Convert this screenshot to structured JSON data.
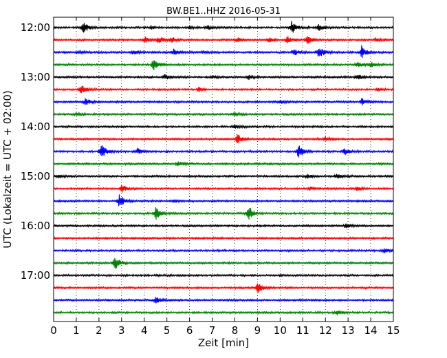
{
  "chart_data": {
    "type": "line",
    "title": "BW.BE1..HHZ 2016-05-31",
    "xlabel": "Zeit  [min]",
    "ylabel": "UTC (Lokalzeit = UTC + 02:00)",
    "xlim": [
      0,
      15
    ],
    "x_ticks": [
      "0",
      "1",
      "2",
      "3",
      "4",
      "5",
      "6",
      "7",
      "8",
      "9",
      "10",
      "11",
      "12",
      "13",
      "14",
      "15"
    ],
    "y_tick_labels": [
      "12:00",
      "13:00",
      "14:00",
      "15:00",
      "16:00",
      "17:00"
    ],
    "grid": "vertical dotted",
    "colors": [
      "#000000",
      "#ff0000",
      "#0000ff",
      "#008000"
    ],
    "traces": [
      {
        "start": "12:00",
        "color": "#000000",
        "bursts": [
          [
            1.3,
            0.75
          ],
          [
            4.3,
            0.2
          ],
          [
            6.0,
            0.2
          ],
          [
            6.8,
            0.25
          ],
          [
            10.5,
            0.85
          ],
          [
            11.7,
            0.45
          ]
        ]
      },
      {
        "start": "12:15",
        "color": "#ff0000",
        "bursts": [
          [
            4.0,
            0.45
          ],
          [
            4.6,
            0.5
          ],
          [
            5.2,
            0.35
          ],
          [
            8.1,
            0.3
          ],
          [
            9.5,
            0.3
          ],
          [
            10.3,
            0.5
          ],
          [
            11.2,
            0.55
          ],
          [
            14.2,
            0.2
          ]
        ]
      },
      {
        "start": "12:30",
        "color": "#0000ff",
        "bursts": [
          [
            1.1,
            0.2
          ],
          [
            3.5,
            0.3
          ],
          [
            5.3,
            0.6
          ],
          [
            6.6,
            0.2
          ],
          [
            10.6,
            0.45
          ],
          [
            11.7,
            0.9
          ],
          [
            13.6,
            0.85
          ]
        ]
      },
      {
        "start": "12:45",
        "color": "#008000",
        "bursts": [
          [
            4.4,
            0.8
          ],
          [
            13.4,
            0.4
          ],
          [
            14.0,
            0.3
          ]
        ]
      },
      {
        "start": "13:00",
        "color": "#000000",
        "bursts": [
          [
            4.9,
            0.35
          ],
          [
            7.0,
            0.2
          ],
          [
            8.6,
            0.35
          ],
          [
            13.4,
            0.4
          ]
        ]
      },
      {
        "start": "13:15",
        "color": "#ff0000",
        "bursts": [
          [
            1.2,
            0.6
          ],
          [
            6.4,
            0.3
          ],
          [
            14.3,
            0.25
          ]
        ]
      },
      {
        "start": "13:30",
        "color": "#0000ff",
        "bursts": [
          [
            1.4,
            0.5
          ],
          [
            10.0,
            0.2
          ],
          [
            13.6,
            0.5
          ]
        ]
      },
      {
        "start": "13:45",
        "color": "#008000",
        "bursts": [
          [
            1.0,
            0.2
          ],
          [
            8.0,
            0.3
          ]
        ]
      },
      {
        "start": "14:00",
        "color": "#000000",
        "bursts": [
          [
            8.0,
            0.25
          ]
        ]
      },
      {
        "start": "14:15",
        "color": "#ff0000",
        "bursts": [
          [
            8.1,
            0.7
          ],
          [
            12.0,
            0.25
          ]
        ]
      },
      {
        "start": "14:30",
        "color": "#0000ff",
        "bursts": [
          [
            2.1,
            0.95
          ],
          [
            3.7,
            0.4
          ],
          [
            10.8,
            0.9
          ],
          [
            12.8,
            0.55
          ]
        ]
      },
      {
        "start": "14:45",
        "color": "#008000",
        "bursts": [
          [
            5.5,
            0.35
          ]
        ]
      },
      {
        "start": "15:00",
        "color": "#000000",
        "bursts": [
          [
            0.2,
            0.2
          ],
          [
            11.2,
            0.3
          ],
          [
            12.5,
            0.3
          ]
        ]
      },
      {
        "start": "15:15",
        "color": "#ff0000",
        "bursts": [
          [
            3.0,
            0.5
          ],
          [
            11.3,
            0.25
          ],
          [
            13.4,
            0.3
          ]
        ]
      },
      {
        "start": "15:30",
        "color": "#0000ff",
        "bursts": [
          [
            2.9,
            0.95
          ],
          [
            5.3,
            0.2
          ]
        ]
      },
      {
        "start": "15:45",
        "color": "#008000",
        "bursts": [
          [
            4.5,
            0.85
          ],
          [
            8.6,
            1.0
          ]
        ]
      },
      {
        "start": "16:00",
        "color": "#000000",
        "bursts": [
          [
            12.9,
            0.3
          ]
        ]
      },
      {
        "start": "16:15",
        "color": "#ff0000",
        "bursts": []
      },
      {
        "start": "16:30",
        "color": "#0000ff",
        "bursts": [
          [
            14.6,
            0.35
          ]
        ]
      },
      {
        "start": "16:45",
        "color": "#008000",
        "bursts": [
          [
            2.7,
            1.1
          ]
        ]
      },
      {
        "start": "17:00",
        "color": "#000000",
        "bursts": []
      },
      {
        "start": "17:15",
        "color": "#ff0000",
        "bursts": [
          [
            9.0,
            0.8
          ]
        ]
      },
      {
        "start": "17:30",
        "color": "#0000ff",
        "bursts": [
          [
            4.5,
            0.45
          ]
        ]
      },
      {
        "start": "17:45",
        "color": "#008000",
        "bursts": [
          [
            12.5,
            0.3
          ]
        ]
      }
    ]
  }
}
